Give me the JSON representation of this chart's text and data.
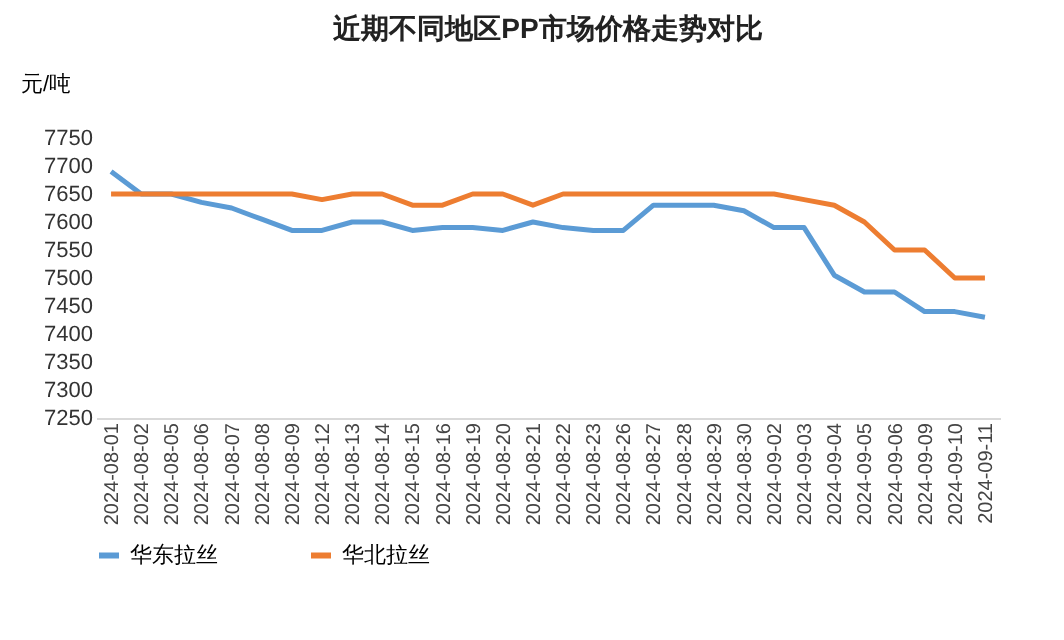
{
  "chart_data": {
    "type": "line",
    "title": "近期不同地区PP市场价格走势对比",
    "ylabel": "元/吨",
    "categories": [
      "2024-08-01",
      "2024-08-02",
      "2024-08-05",
      "2024-08-06",
      "2024-08-07",
      "2024-08-08",
      "2024-08-09",
      "2024-08-12",
      "2024-08-13",
      "2024-08-14",
      "2024-08-15",
      "2024-08-16",
      "2024-08-19",
      "2024-08-20",
      "2024-08-21",
      "2024-08-22",
      "2024-08-23",
      "2024-08-26",
      "2024-08-27",
      "2024-08-28",
      "2024-08-29",
      "2024-08-30",
      "2024-09-02",
      "2024-09-03",
      "2024-09-04",
      "2024-09-05",
      "2024-09-06",
      "2024-09-09",
      "2024-09-10",
      "2024-09-11"
    ],
    "series": [
      {
        "name": "华东拉丝",
        "color": "#5b9bd5",
        "values": [
          7690,
          7650,
          7650,
          7635,
          7625,
          7605,
          7585,
          7585,
          7600,
          7600,
          7585,
          7590,
          7590,
          7585,
          7600,
          7590,
          7585,
          7585,
          7630,
          7630,
          7630,
          7620,
          7590,
          7590,
          7505,
          7475,
          7475,
          7440,
          7440,
          7430
        ]
      },
      {
        "name": "华北拉丝",
        "color": "#ed7d31",
        "values": [
          7650,
          7650,
          7650,
          7650,
          7650,
          7650,
          7650,
          7640,
          7650,
          7650,
          7630,
          7630,
          7650,
          7650,
          7630,
          7650,
          7650,
          7650,
          7650,
          7650,
          7650,
          7650,
          7650,
          7640,
          7630,
          7600,
          7550,
          7550,
          7500,
          7500
        ]
      }
    ],
    "ylim": [
      7250,
      7750
    ],
    "yticks": [
      7250,
      7300,
      7350,
      7400,
      7450,
      7500,
      7550,
      7600,
      7650,
      7700,
      7750
    ],
    "grid": false,
    "legend": "bottom",
    "marker": "none",
    "line_style": "solid"
  }
}
